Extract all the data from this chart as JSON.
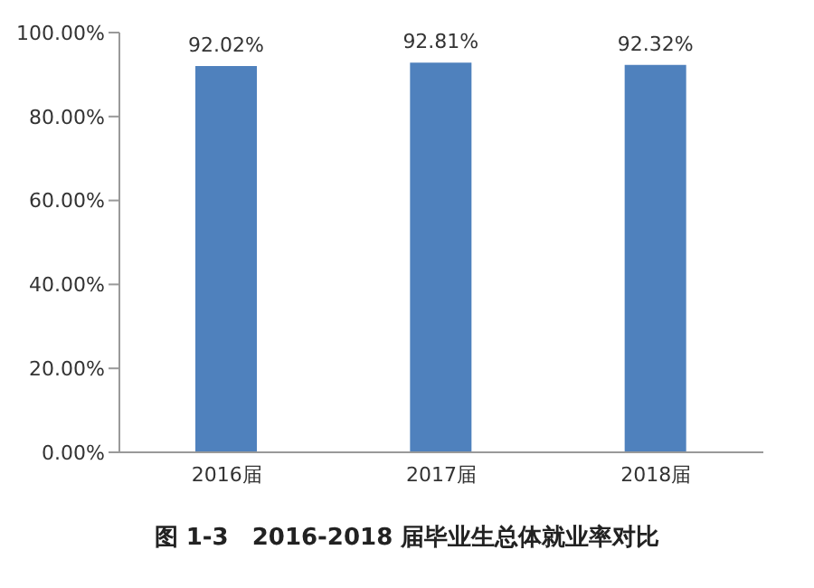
{
  "chart_data": {
    "type": "bar",
    "title": "图 1-3　2016-2018 届毕业生总体就业率对比",
    "categories": [
      "2016届",
      "2017届",
      "2018届"
    ],
    "values": [
      92.02,
      92.81,
      92.32
    ],
    "value_labels": [
      "92.02%",
      "92.81%",
      "92.32%"
    ],
    "color": "#4f81bd",
    "ylim": [
      0,
      100
    ],
    "yticks": [
      {
        "value": 0,
        "label": "0.00%"
      },
      {
        "value": 20,
        "label": "20.00%"
      },
      {
        "value": 40,
        "label": "40.00%"
      },
      {
        "value": 60,
        "label": "60.00%"
      },
      {
        "value": 80,
        "label": "80.00%"
      },
      {
        "value": 100,
        "label": "100.00%"
      }
    ],
    "grid": false,
    "legend": false
  }
}
